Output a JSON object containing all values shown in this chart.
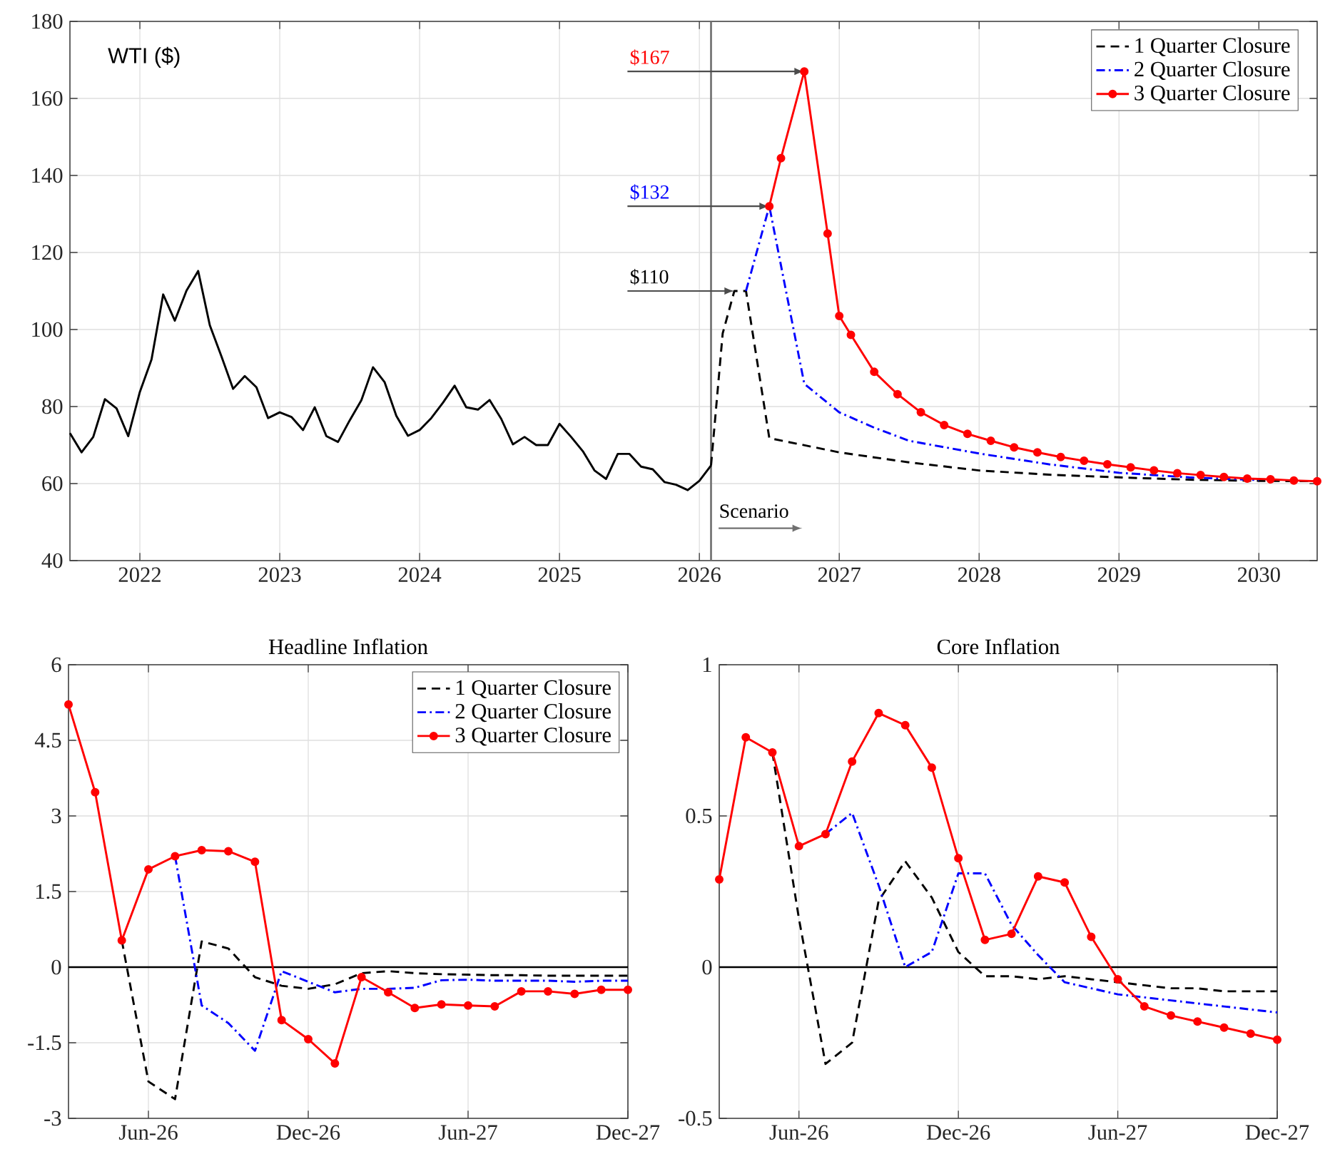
{
  "chart_data": [
    {
      "type": "line",
      "title": "WTI ($)",
      "xlim": [
        "2021-07",
        "2030-06"
      ],
      "ylim": [
        40,
        180
      ],
      "xticks": [
        "2022",
        "2023",
        "2024",
        "2025",
        "2026",
        "2027",
        "2028",
        "2029",
        "2030"
      ],
      "yticks": [
        40,
        60,
        80,
        100,
        120,
        140,
        160,
        180
      ],
      "grid": true,
      "legend": "top right",
      "ref_lines": [
        {
          "axis": "x",
          "value": "2026-02",
          "label": "Scenario",
          "color": "#707070"
        }
      ],
      "annotations": [
        {
          "text": "$110",
          "x": "2026-04",
          "y": 110
        },
        {
          "text": "$132",
          "x": "2026-07",
          "y": 132
        },
        {
          "text": "$167",
          "x": "2026-10",
          "y": 167
        }
      ],
      "series": [
        {
          "color": "#000000",
          "line_style": "solid",
          "x": [
            "2021-07",
            "2021-08",
            "2021-09",
            "2021-10",
            "2021-11",
            "2021-12",
            "2022-01",
            "2022-02",
            "2022-03",
            "2022-04",
            "2022-05",
            "2022-06",
            "2022-07",
            "2022-08",
            "2022-09",
            "2022-10",
            "2022-11",
            "2022-12",
            "2023-01",
            "2023-02",
            "2023-03",
            "2023-04",
            "2023-05",
            "2023-06",
            "2023-07",
            "2023-08",
            "2023-09",
            "2023-10",
            "2023-11",
            "2023-12",
            "2024-01",
            "2024-02",
            "2024-03",
            "2024-04",
            "2024-05",
            "2024-06",
            "2024-07",
            "2024-08",
            "2024-09",
            "2024-10",
            "2024-11",
            "2024-12",
            "2025-01",
            "2025-02",
            "2025-03",
            "2025-04",
            "2025-05",
            "2025-06",
            "2025-07",
            "2025-08",
            "2025-09",
            "2025-10",
            "2025-11",
            "2025-12",
            "2026-01",
            "2026-02"
          ],
          "values": [
            73.1,
            68.1,
            72.1,
            81.9,
            79.5,
            72.3,
            83.8,
            92.2,
            109.1,
            102.3,
            110.1,
            115.2,
            101.1,
            93.0,
            84.6,
            87.9,
            85.0,
            77.0,
            78.5,
            77.3,
            73.9,
            79.8,
            72.3,
            70.8,
            76.4,
            81.6,
            90.2,
            86.3,
            77.6,
            72.4,
            73.9,
            77.0,
            81.0,
            85.4,
            79.8,
            79.2,
            81.7,
            76.8,
            70.2,
            72.1,
            70.0,
            70.0,
            75.5,
            72.1,
            68.4,
            63.4,
            61.2,
            67.7,
            67.7,
            64.4,
            63.7,
            60.4,
            59.7,
            58.3,
            60.7,
            64.7
          ]
        },
        {
          "name": "1 Quarter Closure",
          "color": "#000000",
          "line_style": "dashed",
          "x": [
            "2026-02",
            "2026-03",
            "2026-04",
            "2026-05",
            "2026-07",
            "2027-01",
            "2027-07",
            "2028-01",
            "2028-07",
            "2029-01",
            "2029-07",
            "2030-01",
            "2030-06"
          ],
          "values": [
            64.7,
            99,
            110,
            110,
            71.8,
            68.1,
            65.5,
            63.4,
            62.3,
            61.6,
            61.0,
            60.7,
            60.6
          ]
        },
        {
          "name": "2 Quarter Closure",
          "color": "#0000ff",
          "line_style": "dashdot",
          "x": [
            "2026-05",
            "2026-07",
            "2026-10",
            "2027-01",
            "2027-04",
            "2027-07",
            "2028-01",
            "2028-07",
            "2029-01",
            "2029-07",
            "2030-01"
          ],
          "values": [
            110,
            132,
            85.9,
            78.5,
            74.5,
            71.1,
            67.8,
            65.0,
            62.8,
            61.6,
            60.9
          ]
        },
        {
          "name": "3 Quarter Closure",
          "color": "#ff0000",
          "line_style": "solid",
          "marker": "circle",
          "x": [
            "2026-07",
            "2026-08",
            "2026-10",
            "2026-12",
            "2027-01",
            "2027-02",
            "2027-04",
            "2027-06",
            "2027-08",
            "2027-10",
            "2027-12",
            "2028-02",
            "2028-04",
            "2028-06",
            "2028-08",
            "2028-10",
            "2028-12",
            "2029-02",
            "2029-04",
            "2029-06",
            "2029-08",
            "2029-10",
            "2029-12",
            "2030-02",
            "2030-04",
            "2030-06"
          ],
          "values": [
            132,
            144.5,
            167,
            124.9,
            103.5,
            98.6,
            89.0,
            83.2,
            78.5,
            75.2,
            72.9,
            71.1,
            69.4,
            68.1,
            66.9,
            65.9,
            65.0,
            64.2,
            63.4,
            62.7,
            62.2,
            61.7,
            61.3,
            61.1,
            60.8,
            60.6
          ]
        }
      ]
    },
    {
      "type": "line",
      "title": "Headline Inflation",
      "x": [
        "2026-03",
        "2026-04",
        "2026-05",
        "2026-06",
        "2026-07",
        "2026-08",
        "2026-09",
        "2026-10",
        "2026-11",
        "2026-12",
        "2027-01",
        "2027-02",
        "2027-03",
        "2027-04",
        "2027-05",
        "2027-06",
        "2027-07",
        "2027-08",
        "2027-09",
        "2027-10",
        "2027-11",
        "2027-12"
      ],
      "xlim": [
        "2026-03",
        "2027-12"
      ],
      "ylim": [
        -3,
        6
      ],
      "xticks": [
        {
          "value": "2026-06",
          "label": "Jun-26"
        },
        {
          "value": "2026-12",
          "label": "Dec-26"
        },
        {
          "value": "2027-06",
          "label": "Jun-27"
        },
        {
          "value": "2027-12",
          "label": "Dec-27"
        }
      ],
      "yticks": [
        -3,
        -1.5,
        0,
        1.5,
        3,
        4.5,
        6
      ],
      "grid": true,
      "legend": "top right",
      "ref_lines": [
        {
          "axis": "y",
          "value": 0,
          "color": "#000000"
        }
      ],
      "series": [
        {
          "name": "1 Quarter Closure",
          "color": "#000000",
          "line_style": "dashed",
          "values": [
            null,
            null,
            0.53,
            -2.27,
            -2.62,
            0.51,
            0.37,
            -0.2,
            -0.37,
            -0.43,
            -0.34,
            -0.12,
            -0.08,
            -0.12,
            -0.14,
            -0.15,
            -0.16,
            -0.16,
            -0.17,
            -0.17,
            -0.17,
            -0.17
          ]
        },
        {
          "name": "2 Quarter Closure",
          "color": "#0000ff",
          "line_style": "dashdot",
          "values": [
            null,
            null,
            null,
            null,
            2.2,
            -0.76,
            -1.11,
            -1.66,
            -0.08,
            -0.29,
            -0.5,
            -0.43,
            -0.43,
            -0.41,
            -0.26,
            -0.25,
            -0.27,
            -0.27,
            -0.27,
            -0.29,
            -0.27,
            -0.27
          ]
        },
        {
          "name": "3 Quarter Closure",
          "color": "#ff0000",
          "line_style": "solid",
          "marker": "circle",
          "values": [
            5.21,
            3.47,
            0.53,
            1.94,
            2.2,
            2.32,
            2.3,
            2.09,
            -1.05,
            -1.43,
            -1.91,
            -0.2,
            -0.5,
            -0.81,
            -0.74,
            -0.76,
            -0.78,
            -0.48,
            -0.48,
            -0.53,
            -0.45,
            -0.45
          ]
        }
      ]
    },
    {
      "type": "line",
      "title": "Core Inflation",
      "x": [
        "2026-03",
        "2026-04",
        "2026-05",
        "2026-06",
        "2026-07",
        "2026-08",
        "2026-09",
        "2026-10",
        "2026-11",
        "2026-12",
        "2027-01",
        "2027-02",
        "2027-03",
        "2027-04",
        "2027-05",
        "2027-06",
        "2027-07",
        "2027-08",
        "2027-09",
        "2027-10",
        "2027-11",
        "2027-12"
      ],
      "xlim": [
        "2026-03",
        "2027-12"
      ],
      "ylim": [
        -0.5,
        1
      ],
      "xticks": [
        {
          "value": "2026-06",
          "label": "Jun-26"
        },
        {
          "value": "2026-12",
          "label": "Dec-26"
        },
        {
          "value": "2027-06",
          "label": "Jun-27"
        },
        {
          "value": "2027-12",
          "label": "Dec-27"
        }
      ],
      "yticks": [
        -0.5,
        0,
        0.5,
        1
      ],
      "grid": true,
      "ref_lines": [
        {
          "axis": "y",
          "value": 0,
          "color": "#000000"
        }
      ],
      "series": [
        {
          "color": "#000000",
          "line_style": "dashed",
          "values": [
            null,
            null,
            0.71,
            0.16,
            -0.32,
            -0.25,
            0.22,
            0.35,
            0.23,
            0.05,
            -0.03,
            -0.03,
            -0.04,
            -0.03,
            -0.04,
            -0.05,
            -0.06,
            -0.07,
            -0.07,
            -0.08,
            -0.08,
            -0.08
          ]
        },
        {
          "color": "#0000ff",
          "line_style": "dashdot",
          "values": [
            null,
            null,
            null,
            null,
            0.44,
            0.51,
            0.27,
            0,
            0.05,
            0.31,
            0.31,
            0.14,
            0.04,
            -0.05,
            -0.07,
            -0.09,
            -0.1,
            -0.11,
            -0.12,
            -0.13,
            -0.14,
            -0.15
          ]
        },
        {
          "color": "#ff0000",
          "line_style": "solid",
          "marker": "circle",
          "values": [
            0.29,
            0.76,
            0.71,
            0.4,
            0.44,
            0.68,
            0.84,
            0.8,
            0.66,
            0.36,
            0.09,
            0.11,
            0.3,
            0.28,
            0.1,
            -0.04,
            -0.13,
            -0.16,
            -0.18,
            -0.2,
            -0.22,
            -0.24
          ]
        }
      ]
    }
  ]
}
